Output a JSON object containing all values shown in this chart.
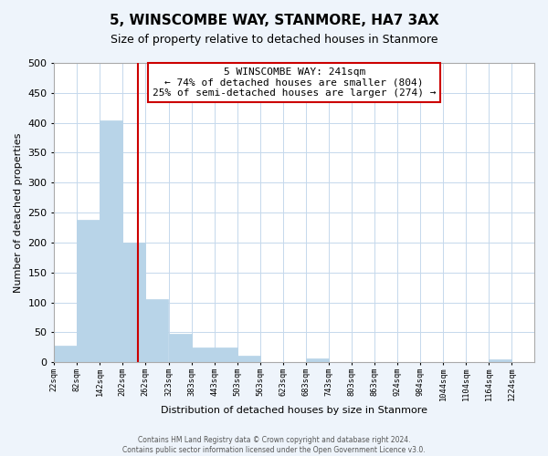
{
  "title": "5, WINSCOMBE WAY, STANMORE, HA7 3AX",
  "subtitle": "Size of property relative to detached houses in Stanmore",
  "xlabel": "Distribution of detached houses by size in Stanmore",
  "ylabel": "Number of detached properties",
  "bar_left_edges": [
    22,
    82,
    142,
    202,
    262,
    323,
    383,
    443,
    503,
    563,
    623,
    683,
    743,
    803,
    863,
    924,
    984,
    1044,
    1104,
    1164
  ],
  "bar_heights": [
    27,
    238,
    404,
    200,
    105,
    48,
    25,
    25,
    11,
    0,
    0,
    7,
    0,
    0,
    0,
    0,
    0,
    0,
    0,
    5
  ],
  "bar_widths": [
    60,
    60,
    60,
    60,
    60,
    60,
    60,
    60,
    60,
    60,
    60,
    60,
    60,
    60,
    60,
    60,
    60,
    60,
    60,
    60
  ],
  "tick_labels": [
    "22sqm",
    "82sqm",
    "142sqm",
    "202sqm",
    "262sqm",
    "323sqm",
    "383sqm",
    "443sqm",
    "503sqm",
    "563sqm",
    "623sqm",
    "683sqm",
    "743sqm",
    "803sqm",
    "863sqm",
    "924sqm",
    "984sqm",
    "1044sqm",
    "1104sqm",
    "1164sqm",
    "1224sqm"
  ],
  "tick_positions": [
    22,
    82,
    142,
    202,
    262,
    323,
    383,
    443,
    503,
    563,
    623,
    683,
    743,
    803,
    863,
    924,
    984,
    1044,
    1104,
    1164,
    1224
  ],
  "bar_color": "#b8d4e8",
  "bar_edge_color": "#b8d4e8",
  "property_line_x": 241,
  "property_line_color": "#cc0000",
  "annotation_line1": "5 WINSCOMBE WAY: 241sqm",
  "annotation_line2": "← 74% of detached houses are smaller (804)",
  "annotation_line3": "25% of semi-detached houses are larger (274) →",
  "annotation_box_color": "white",
  "annotation_box_edge_color": "#cc0000",
  "ylim": [
    0,
    500
  ],
  "xlim": [
    22,
    1284
  ],
  "yticks": [
    0,
    50,
    100,
    150,
    200,
    250,
    300,
    350,
    400,
    450,
    500
  ],
  "footer_line1": "Contains HM Land Registry data © Crown copyright and database right 2024.",
  "footer_line2": "Contains public sector information licensed under the Open Government Licence v3.0.",
  "background_color": "#eef4fb",
  "plot_bg_color": "white",
  "grid_color": "#c5d8ec"
}
